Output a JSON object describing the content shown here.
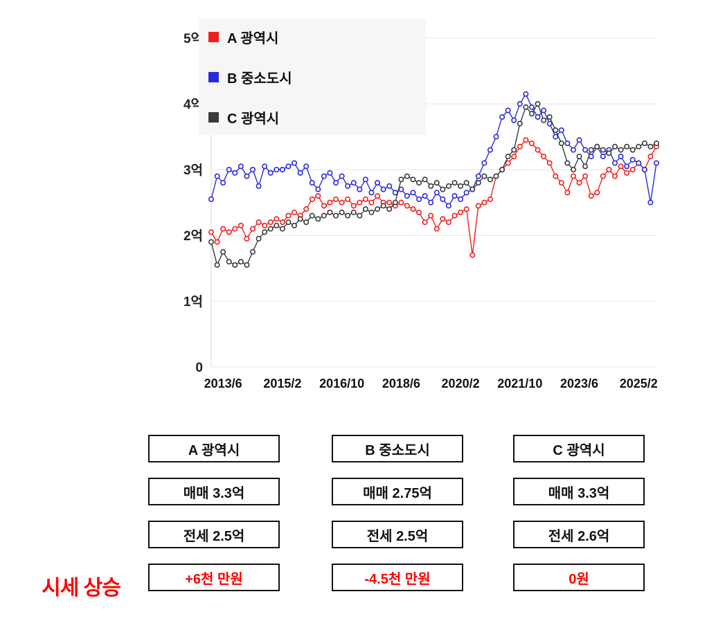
{
  "chart_data": {
    "type": "line",
    "title": "",
    "xlabel": "",
    "ylabel": "",
    "y_unit": "억",
    "ylim": [
      0,
      5
    ],
    "y_ticks": [
      "0",
      "1억",
      "2억",
      "3억",
      "4억",
      "5억"
    ],
    "x_start": "2013/2",
    "x_step_months": 2,
    "x_tick_labels": [
      "2013/6",
      "2015/2",
      "2016/10",
      "2018/6",
      "2020/2",
      "2021/10",
      "2023/6",
      "2025/2"
    ],
    "x_tick_indices": [
      2,
      12,
      22,
      32,
      42,
      52,
      62,
      72
    ],
    "grid": "horizontal",
    "legend_position": "top-left",
    "marker": "open-circle",
    "series": [
      {
        "name": "A 광역시",
        "color": "#ef1f1f",
        "values": [
          2.05,
          1.9,
          2.1,
          2.05,
          2.1,
          2.15,
          1.95,
          2.1,
          2.2,
          2.15,
          2.2,
          2.25,
          2.2,
          2.3,
          2.35,
          2.3,
          2.4,
          2.55,
          2.6,
          2.45,
          2.5,
          2.55,
          2.5,
          2.55,
          2.45,
          2.5,
          2.55,
          2.5,
          2.6,
          2.5,
          2.5,
          2.45,
          2.5,
          2.45,
          2.4,
          2.35,
          2.2,
          2.3,
          2.1,
          2.25,
          2.2,
          2.3,
          2.35,
          2.4,
          1.7,
          2.45,
          2.5,
          2.55,
          2.9,
          3.0,
          3.1,
          3.2,
          3.35,
          3.45,
          3.4,
          3.3,
          3.2,
          3.1,
          2.9,
          2.8,
          2.65,
          2.9,
          2.8,
          2.9,
          2.6,
          2.65,
          2.9,
          3.0,
          2.9,
          3.05,
          2.95,
          3.0,
          3.1,
          3.0,
          3.2,
          3.35
        ]
      },
      {
        "name": "B 중소도시",
        "color": "#2929e0",
        "values": [
          2.55,
          2.9,
          2.8,
          3.0,
          2.95,
          3.05,
          2.9,
          3.0,
          2.75,
          3.05,
          2.95,
          3.0,
          3.0,
          3.05,
          3.1,
          2.95,
          3.05,
          2.8,
          2.7,
          2.9,
          2.95,
          2.8,
          2.9,
          2.75,
          2.8,
          2.7,
          2.85,
          2.65,
          2.8,
          2.7,
          2.75,
          2.65,
          2.7,
          2.6,
          2.65,
          2.55,
          2.6,
          2.5,
          2.65,
          2.55,
          2.45,
          2.6,
          2.55,
          2.65,
          2.7,
          2.9,
          3.1,
          3.3,
          3.5,
          3.8,
          3.9,
          3.75,
          4.0,
          4.15,
          3.95,
          3.8,
          3.9,
          3.7,
          3.5,
          3.6,
          3.4,
          3.3,
          3.45,
          3.3,
          3.2,
          3.35,
          3.2,
          3.3,
          3.1,
          3.2,
          3.05,
          3.15,
          3.1,
          3.0,
          2.5,
          3.1
        ]
      },
      {
        "name": "C 광역시",
        "color": "#3a3a3a",
        "values": [
          1.9,
          1.55,
          1.75,
          1.6,
          1.55,
          1.6,
          1.55,
          1.75,
          1.95,
          2.05,
          2.1,
          2.15,
          2.1,
          2.2,
          2.15,
          2.25,
          2.2,
          2.3,
          2.25,
          2.3,
          2.35,
          2.3,
          2.35,
          2.3,
          2.35,
          2.3,
          2.4,
          2.35,
          2.4,
          2.45,
          2.4,
          2.5,
          2.85,
          2.9,
          2.85,
          2.8,
          2.85,
          2.75,
          2.8,
          2.7,
          2.75,
          2.8,
          2.75,
          2.8,
          2.7,
          2.8,
          2.9,
          2.85,
          2.9,
          3.0,
          3.2,
          3.3,
          3.7,
          3.95,
          3.85,
          4.0,
          3.75,
          3.8,
          3.6,
          3.4,
          3.1,
          3.0,
          3.2,
          3.05,
          3.3,
          3.35,
          3.3,
          3.25,
          3.35,
          3.3,
          3.35,
          3.3,
          3.35,
          3.4,
          3.35,
          3.4
        ]
      }
    ]
  },
  "summary": {
    "row_label": "시세 상승",
    "columns": [
      {
        "name": "A 광역시",
        "sale": "매매 3.3억",
        "jeonse": "전세 2.5억",
        "change": "+6천 만원"
      },
      {
        "name": "B 중소도시",
        "sale": "매매 2.75억",
        "jeonse": "전세 2.5억",
        "change": "-4.5천 만원"
      },
      {
        "name": "C 광역시",
        "sale": "매매 3.3억",
        "jeonse": "전세 2.6억",
        "change": "0원"
      }
    ]
  },
  "colors": {
    "accent_red": "#ff0000",
    "grid": "#e4e4e4",
    "axis": "#d8d8d8"
  }
}
